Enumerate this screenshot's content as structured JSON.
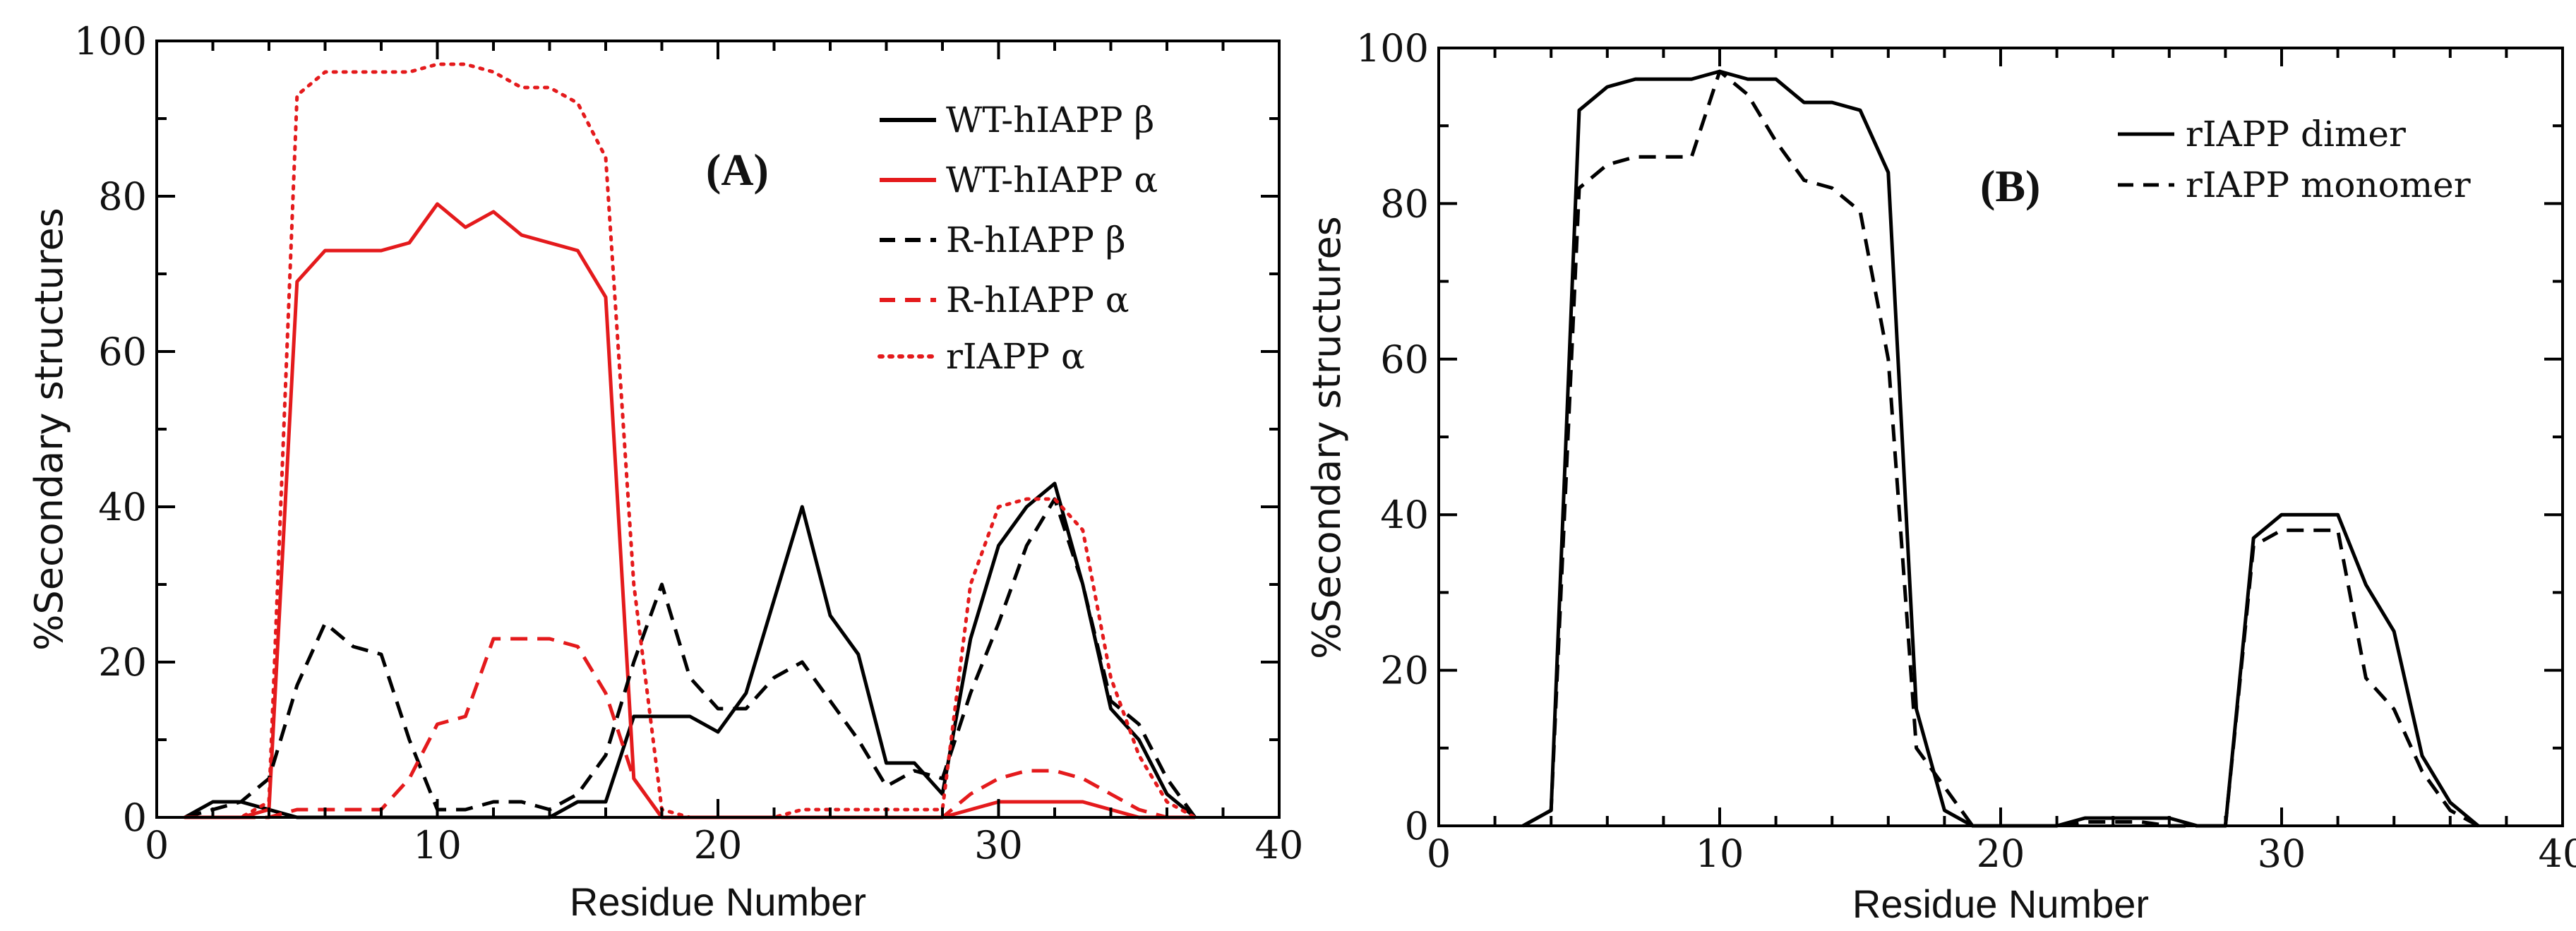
{
  "chart_data": [
    {
      "type": "line",
      "panel_label": "(A)",
      "title": "",
      "xlabel": "Residue Number",
      "ylabel": "%Secondary structures",
      "xlim": [
        0,
        40
      ],
      "ylim": [
        0,
        100
      ],
      "xticks": [
        0,
        10,
        20,
        30,
        40
      ],
      "yticks": [
        0,
        20,
        40,
        60,
        80,
        100
      ],
      "grid": false,
      "legend_position": "top-right",
      "series": [
        {
          "name": "WT-hIAPP  β",
          "color": "#000000",
          "dash": "solid",
          "x": [
            1,
            2,
            3,
            4,
            5,
            6,
            7,
            8,
            9,
            10,
            11,
            12,
            13,
            14,
            15,
            16,
            17,
            18,
            19,
            20,
            21,
            22,
            23,
            24,
            25,
            26,
            27,
            28,
            29,
            30,
            31,
            32,
            33,
            34,
            35,
            36,
            37
          ],
          "y": [
            0,
            2,
            2,
            1,
            0,
            0,
            0,
            0,
            0,
            0,
            0,
            0,
            0,
            0,
            2,
            2,
            13,
            13,
            13,
            11,
            16,
            28,
            40,
            26,
            21,
            7,
            7,
            3,
            23,
            35,
            40,
            43,
            30,
            14,
            10,
            3,
            0
          ]
        },
        {
          "name": "WT-hIAPP α",
          "color": "#e41a1c",
          "dash": "solid",
          "x": [
            1,
            2,
            3,
            4,
            5,
            6,
            7,
            8,
            9,
            10,
            11,
            12,
            13,
            14,
            15,
            16,
            17,
            18,
            19,
            20,
            21,
            22,
            23,
            24,
            25,
            26,
            27,
            28,
            29,
            30,
            31,
            32,
            33,
            34,
            35,
            36,
            37
          ],
          "y": [
            0,
            0,
            0,
            1,
            69,
            73,
            73,
            73,
            74,
            79,
            76,
            78,
            75,
            74,
            73,
            67,
            5,
            0,
            0,
            0,
            0,
            0,
            0,
            0,
            0,
            0,
            0,
            0,
            1,
            2,
            2,
            2,
            2,
            1,
            0,
            0,
            0
          ]
        },
        {
          "name": "R-hIAPP  β",
          "color": "#000000",
          "dash": "dashed",
          "x": [
            1,
            2,
            3,
            4,
            5,
            6,
            7,
            8,
            9,
            10,
            11,
            12,
            13,
            14,
            15,
            16,
            17,
            18,
            19,
            20,
            21,
            22,
            23,
            24,
            25,
            26,
            27,
            28,
            29,
            30,
            31,
            32,
            33,
            34,
            35,
            36,
            37
          ],
          "y": [
            0,
            1,
            2,
            5,
            17,
            25,
            22,
            21,
            10,
            1,
            1,
            2,
            2,
            1,
            3,
            8,
            20,
            30,
            18,
            14,
            14,
            18,
            20,
            15,
            10,
            4,
            6,
            5,
            16,
            25,
            35,
            41,
            30,
            15,
            12,
            5,
            0
          ]
        },
        {
          "name": "R-hIAPP  α",
          "color": "#e41a1c",
          "dash": "dashed",
          "x": [
            1,
            2,
            3,
            4,
            5,
            6,
            7,
            8,
            9,
            10,
            11,
            12,
            13,
            14,
            15,
            16,
            17,
            18,
            19,
            20,
            21,
            22,
            23,
            24,
            25,
            26,
            27,
            28,
            29,
            30,
            31,
            32,
            33,
            34,
            35,
            36,
            37
          ],
          "y": [
            0,
            0,
            0,
            0,
            1,
            1,
            1,
            1,
            5,
            12,
            13,
            23,
            23,
            23,
            22,
            16,
            5,
            0,
            0,
            0,
            0,
            0,
            0,
            0,
            0,
            0,
            0,
            0,
            3,
            5,
            6,
            6,
            5,
            3,
            1,
            0,
            0
          ]
        },
        {
          "name": "rIAPP α",
          "color": "#e41a1c",
          "dash": "dotted",
          "x": [
            1,
            2,
            3,
            4,
            5,
            6,
            7,
            8,
            9,
            10,
            11,
            12,
            13,
            14,
            15,
            16,
            17,
            18,
            19,
            20,
            21,
            22,
            23,
            24,
            25,
            26,
            27,
            28,
            29,
            30,
            31,
            32,
            33,
            34,
            35,
            36,
            37
          ],
          "y": [
            0,
            0,
            0,
            2,
            93,
            96,
            96,
            96,
            96,
            97,
            97,
            96,
            94,
            94,
            92,
            85,
            30,
            1,
            0,
            0,
            0,
            0,
            1,
            1,
            1,
            1,
            1,
            1,
            30,
            40,
            41,
            41,
            37,
            18,
            8,
            2,
            0
          ]
        }
      ]
    },
    {
      "type": "line",
      "panel_label": "(B)",
      "title": "",
      "xlabel": "Residue Number",
      "ylabel": "%Secondary structures",
      "xlim": [
        0,
        40
      ],
      "ylim": [
        0,
        100
      ],
      "xticks": [
        0,
        10,
        20,
        30,
        40
      ],
      "yticks": [
        0,
        20,
        40,
        60,
        80,
        100
      ],
      "grid": false,
      "legend_position": "top-right",
      "series": [
        {
          "name": "rIAPP dimer",
          "color": "#000000",
          "dash": "solid",
          "x": [
            3,
            4,
            5,
            6,
            7,
            8,
            9,
            10,
            11,
            12,
            13,
            14,
            15,
            16,
            17,
            18,
            19,
            20,
            21,
            22,
            23,
            24,
            25,
            26,
            27,
            28,
            29,
            30,
            31,
            32,
            33,
            34,
            35,
            36,
            37
          ],
          "y": [
            0,
            2,
            92,
            95,
            96,
            96,
            96,
            97,
            96,
            96,
            93,
            93,
            92,
            84,
            15,
            2,
            0,
            0,
            0,
            0,
            1,
            1,
            1,
            1,
            0,
            0,
            37,
            40,
            40,
            40,
            31,
            25,
            9,
            3,
            0
          ]
        },
        {
          "name": "rIAPP monomer",
          "color": "#000000",
          "dash": "dashed",
          "x": [
            3,
            4,
            5,
            6,
            7,
            8,
            9,
            10,
            11,
            12,
            13,
            14,
            15,
            16,
            17,
            18,
            19,
            20,
            21,
            22,
            23,
            24,
            25,
            26,
            27,
            28,
            29,
            30,
            31,
            32,
            33,
            34,
            35,
            36,
            37
          ],
          "y": [
            0,
            2,
            82,
            85,
            86,
            86,
            86,
            97,
            94,
            88,
            83,
            82,
            79,
            60,
            10,
            5,
            0,
            0,
            0,
            0,
            0.5,
            0.5,
            0.5,
            0,
            0,
            0,
            36,
            38,
            38,
            38,
            19,
            15,
            7,
            2,
            0
          ]
        }
      ]
    }
  ]
}
